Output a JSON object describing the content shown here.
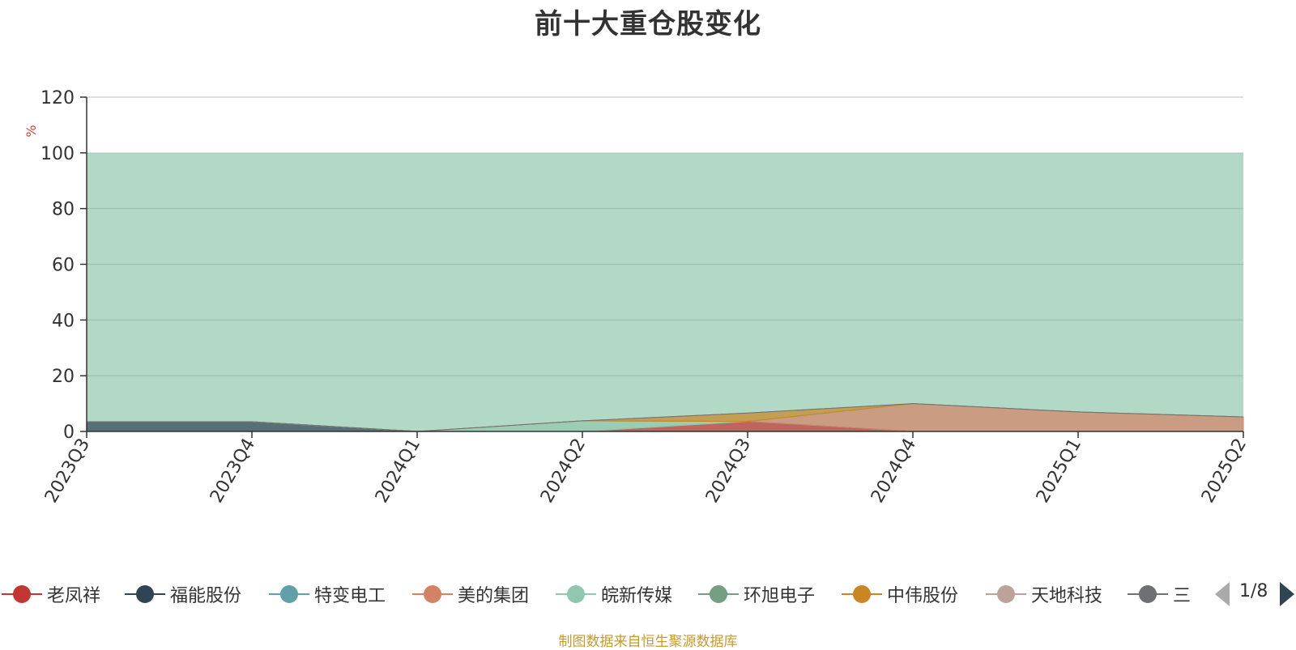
{
  "chart_data": {
    "type": "area",
    "title": "前十大重仓股变化",
    "ylabel": "%",
    "xlabel": "",
    "ylim": [
      0,
      120
    ],
    "yticks": [
      0,
      20,
      40,
      60,
      80,
      100,
      120
    ],
    "categories": [
      "2023Q3",
      "2023Q4",
      "2024Q1",
      "2024Q2",
      "2024Q3",
      "2024Q4",
      "2025Q1",
      "2025Q2"
    ],
    "stacked": true,
    "background_band": {
      "from": 0,
      "to": 100,
      "color": "#b2d9c5"
    },
    "series": [
      {
        "name": "老凤祥",
        "color": "#c23531",
        "values": [
          0,
          0,
          0,
          0,
          3.6,
          0,
          0,
          0
        ]
      },
      {
        "name": "福能股份",
        "color": "#2f4554",
        "values": [
          3.5,
          3.5,
          0,
          0,
          0,
          0,
          0,
          0
        ]
      },
      {
        "name": "特变电工",
        "color": "#61a0a8",
        "values": [
          0,
          0,
          0,
          0,
          0,
          0,
          0,
          0
        ]
      },
      {
        "name": "美的集团",
        "color": "#d48265",
        "values": [
          0,
          0,
          0,
          0,
          0,
          10,
          7,
          5.2
        ]
      },
      {
        "name": "皖新传媒",
        "color": "#91c7ae",
        "values": [
          0,
          0,
          0,
          3.8,
          0,
          0,
          0,
          0
        ]
      },
      {
        "name": "环旭电子",
        "color": "#749f83",
        "values": [
          0,
          0,
          0,
          0,
          0,
          0,
          0,
          0
        ]
      },
      {
        "name": "中伟股份",
        "color": "#ca8622",
        "values": [
          0,
          0,
          0,
          0,
          3,
          0,
          0,
          0
        ]
      },
      {
        "name": "天地科技",
        "color": "#bda29a",
        "values": [
          0,
          0,
          0,
          0,
          0,
          0,
          0,
          0
        ]
      },
      {
        "name": "三",
        "color": "#6e7074",
        "values": [
          0,
          0,
          0,
          0,
          0,
          0,
          0,
          0
        ]
      }
    ]
  },
  "legend": {
    "items": [
      {
        "name": "老凤祥",
        "color": "#c23531"
      },
      {
        "name": "福能股份",
        "color": "#2f4554"
      },
      {
        "name": "特变电工",
        "color": "#61a0a8"
      },
      {
        "name": "美的集团",
        "color": "#d48265"
      },
      {
        "name": "皖新传媒",
        "color": "#91c7ae"
      },
      {
        "name": "环旭电子",
        "color": "#749f83"
      },
      {
        "name": "中伟股份",
        "color": "#ca8622"
      },
      {
        "name": "天地科技",
        "color": "#bda29a"
      },
      {
        "name": "三",
        "color": "#6e7074"
      }
    ],
    "page": "1/8",
    "prev_icon": "triangle-left-icon",
    "next_icon": "triangle-right-icon"
  },
  "footer": {
    "source": "制图数据来自恒生聚源数据库"
  }
}
